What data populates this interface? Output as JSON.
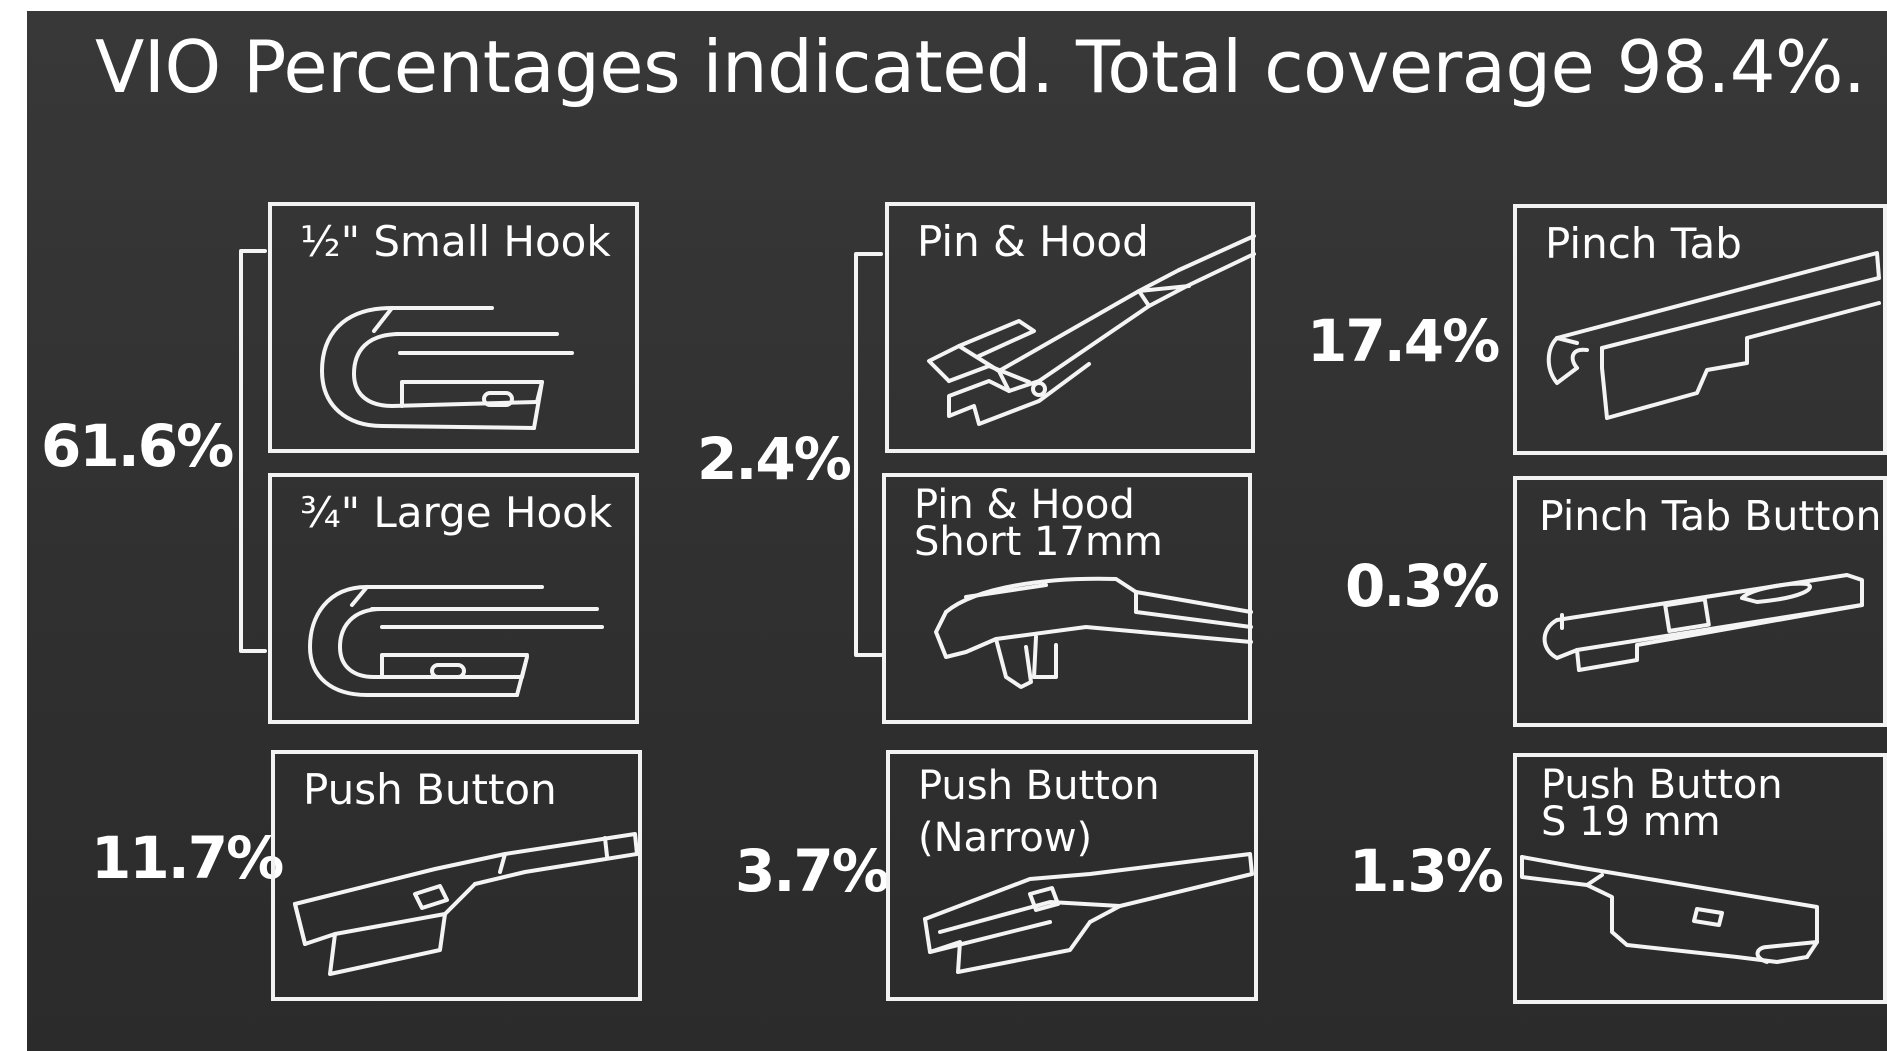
{
  "title": "VIO Percentages indicated. Total coverage 98.4%.",
  "colors": {
    "background": "#333333",
    "foreground": "#ffffff"
  },
  "groups": [
    {
      "percentage": "61.6%",
      "adapters": [
        "½\" Small Hook",
        "¾\" Large Hook"
      ]
    },
    {
      "percentage": "11.7%",
      "adapters": [
        "Push Button"
      ]
    },
    {
      "percentage": "2.4%",
      "adapters": [
        "Pin & Hood",
        "Pin & Hood Short 17mm"
      ]
    },
    {
      "percentage": "3.7%",
      "adapters": [
        "Push Button (Narrow)"
      ]
    },
    {
      "percentage": "17.4%",
      "adapters": [
        "Pinch Tab"
      ]
    },
    {
      "percentage": "0.3%",
      "adapters": [
        "Pinch Tab Button"
      ]
    },
    {
      "percentage": "1.3%",
      "adapters": [
        "Push Button S 19 mm"
      ]
    }
  ],
  "boxes": {
    "small_hook": {
      "label": "½\" Small Hook",
      "icon": "small-hook-connector-icon"
    },
    "large_hook": {
      "label": "¾\" Large Hook",
      "icon": "large-hook-connector-icon"
    },
    "push_button": {
      "label": "Push Button",
      "icon": "push-button-connector-icon"
    },
    "pin_hood": {
      "label": "Pin & Hood",
      "icon": "pin-hood-connector-icon"
    },
    "pin_hood_short": {
      "label_line1": "Pin & Hood",
      "label_line2": "Short 17mm",
      "icon": "pin-hood-short-connector-icon"
    },
    "push_button_narrow": {
      "label_line1": "Push Button",
      "label_line2": "(Narrow)",
      "icon": "push-button-narrow-connector-icon"
    },
    "pinch_tab": {
      "label": "Pinch Tab",
      "icon": "pinch-tab-connector-icon"
    },
    "pinch_tab_button": {
      "label": "Pinch Tab Button",
      "icon": "pinch-tab-button-connector-icon"
    },
    "push_button_s19": {
      "label_line1": "Push Button",
      "label_line2": "S 19 mm",
      "icon": "push-button-s19-connector-icon"
    }
  },
  "percentages": {
    "hooks": "61.6%",
    "push_button": "11.7%",
    "pin_hood": "2.4%",
    "push_button_narrow": "3.7%",
    "pinch_tab": "17.4%",
    "pinch_tab_button": "0.3%",
    "push_button_s19": "1.3%"
  }
}
